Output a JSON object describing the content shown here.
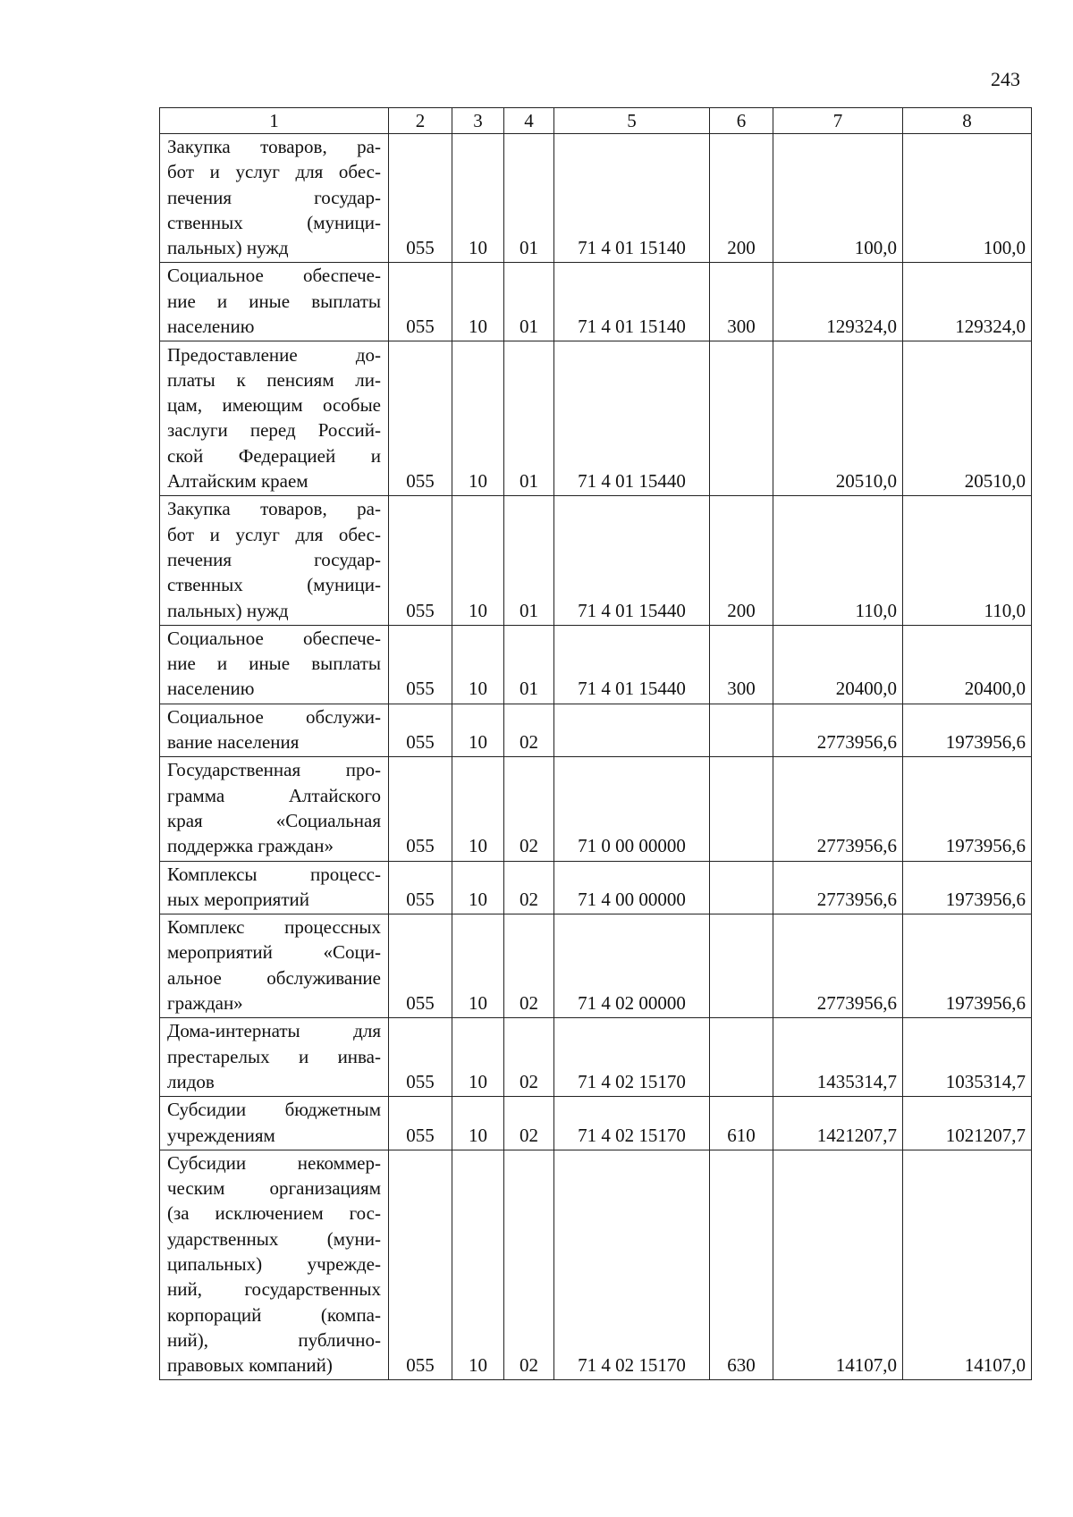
{
  "page_number": "243",
  "table": {
    "headers": [
      "1",
      "2",
      "3",
      "4",
      "5",
      "6",
      "7",
      "8"
    ],
    "rows": [
      {
        "name_lines": [
          "Закупка товаров, ра-",
          "бот и услуг для обес-",
          "печения государ-",
          "ственных (муници-",
          "пальных) нужд"
        ],
        "c2": "055",
        "c3": "10",
        "c4": "01",
        "c5": "71 4 01 15140",
        "c6": "200",
        "c7": "100,0",
        "c8": "100,0"
      },
      {
        "name_lines": [
          "Социальное обеспече-",
          "ние и иные выплаты",
          "населению"
        ],
        "c2": "055",
        "c3": "10",
        "c4": "01",
        "c5": "71 4 01 15140",
        "c6": "300",
        "c7": "129324,0",
        "c8": "129324,0"
      },
      {
        "name_lines": [
          "Предоставление до-",
          "платы к пенсиям ли-",
          "цам, имеющим особые",
          "заслуги перед Россий-",
          "ской Федерацией и",
          "Алтайским краем"
        ],
        "c2": "055",
        "c3": "10",
        "c4": "01",
        "c5": "71 4 01 15440",
        "c6": "",
        "c7": "20510,0",
        "c8": "20510,0"
      },
      {
        "name_lines": [
          "Закупка товаров, ра-",
          "бот и услуг для обес-",
          "печения государ-",
          "ственных (муници-",
          "пальных) нужд"
        ],
        "c2": "055",
        "c3": "10",
        "c4": "01",
        "c5": "71 4 01 15440",
        "c6": "200",
        "c7": "110,0",
        "c8": "110,0"
      },
      {
        "name_lines": [
          "Социальное обеспече-",
          "ние и иные выплаты",
          "населению"
        ],
        "c2": "055",
        "c3": "10",
        "c4": "01",
        "c5": "71 4 01 15440",
        "c6": "300",
        "c7": "20400,0",
        "c8": "20400,0"
      },
      {
        "name_lines": [
          "Социальное обслужи-",
          "вание населения"
        ],
        "c2": "055",
        "c3": "10",
        "c4": "02",
        "c5": "",
        "c6": "",
        "c7": "2773956,6",
        "c8": "1973956,6"
      },
      {
        "name_lines": [
          "Государственная про-",
          "грамма Алтайского",
          "края «Социальная",
          "поддержка граждан»"
        ],
        "c2": "055",
        "c3": "10",
        "c4": "02",
        "c5": "71 0 00 00000",
        "c6": "",
        "c7": "2773956,6",
        "c8": "1973956,6"
      },
      {
        "name_lines": [
          "Комплексы процесс-",
          "ных мероприятий"
        ],
        "c2": "055",
        "c3": "10",
        "c4": "02",
        "c5": "71 4 00 00000",
        "c6": "",
        "c7": "2773956,6",
        "c8": "1973956,6"
      },
      {
        "name_lines": [
          "Комплекс процессных",
          "мероприятий «Соци-",
          "альное обслуживание",
          "граждан»"
        ],
        "c2": "055",
        "c3": "10",
        "c4": "02",
        "c5": "71 4 02 00000",
        "c6": "",
        "c7": "2773956,6",
        "c8": "1973956,6"
      },
      {
        "name_lines": [
          "Дома-интернаты для",
          "престарелых и инва-",
          "лидов"
        ],
        "c2": "055",
        "c3": "10",
        "c4": "02",
        "c5": "71 4 02 15170",
        "c6": "",
        "c7": "1435314,7",
        "c8": "1035314,7"
      },
      {
        "name_lines": [
          "Субсидии бюджетным",
          "учреждениям"
        ],
        "c2": "055",
        "c3": "10",
        "c4": "02",
        "c5": "71 4 02 15170",
        "c6": "610",
        "c7": "1421207,7",
        "c8": "1021207,7"
      },
      {
        "name_lines": [
          "Субсидии некоммер-",
          "ческим организациям",
          "(за исключением гос-",
          "ударственных (муни-",
          "ципальных) учрежде-",
          "ний, государственных",
          "корпораций (компа-",
          "ний), публично-",
          "правовых компаний)"
        ],
        "c2": "055",
        "c3": "10",
        "c4": "02",
        "c5": "71 4 02 15170",
        "c6": "630",
        "c7": "14107,0",
        "c8": "14107,0"
      }
    ]
  }
}
